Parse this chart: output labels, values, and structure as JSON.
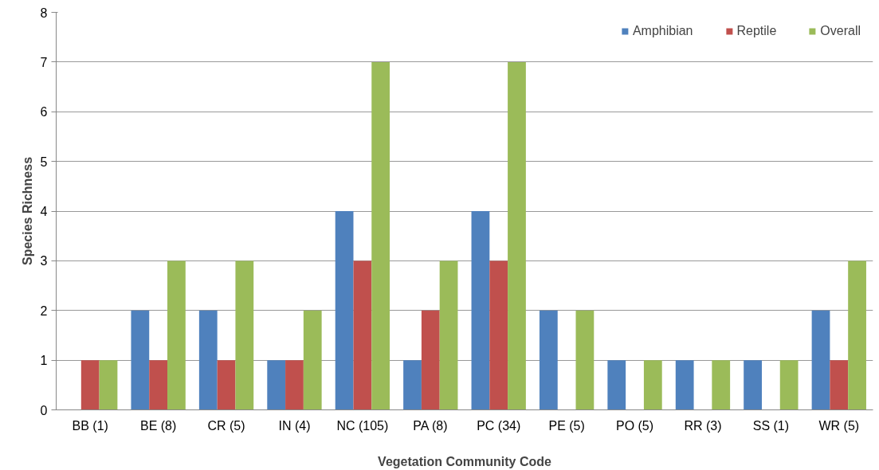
{
  "chart_data": {
    "type": "bar",
    "xlabel": "Vegetation Community Code",
    "ylabel": "Species Richness",
    "categories": [
      "BB (1)",
      "BE (8)",
      "CR (5)",
      "IN (4)",
      "NC (105)",
      "PA (8)",
      "PC (34)",
      "PE (5)",
      "PO (5)",
      "RR (3)",
      "SS (1)",
      "WR (5)"
    ],
    "series": [
      {
        "name": "Amphibian",
        "color": "#4f81bd",
        "values": [
          0,
          2,
          2,
          1,
          4,
          1,
          4,
          2,
          1,
          1,
          1,
          2
        ]
      },
      {
        "name": "Reptile",
        "color": "#c0504d",
        "values": [
          1,
          1,
          1,
          1,
          3,
          2,
          3,
          0,
          0,
          0,
          0,
          1
        ]
      },
      {
        "name": "Overall",
        "color": "#9bbb59",
        "values": [
          1,
          3,
          3,
          2,
          7,
          3,
          7,
          2,
          1,
          1,
          1,
          3
        ]
      }
    ],
    "ylim": [
      0,
      8
    ],
    "yticks": [
      0,
      1,
      2,
      3,
      4,
      5,
      6,
      7,
      8
    ],
    "grid": "y",
    "legend": "top right"
  }
}
